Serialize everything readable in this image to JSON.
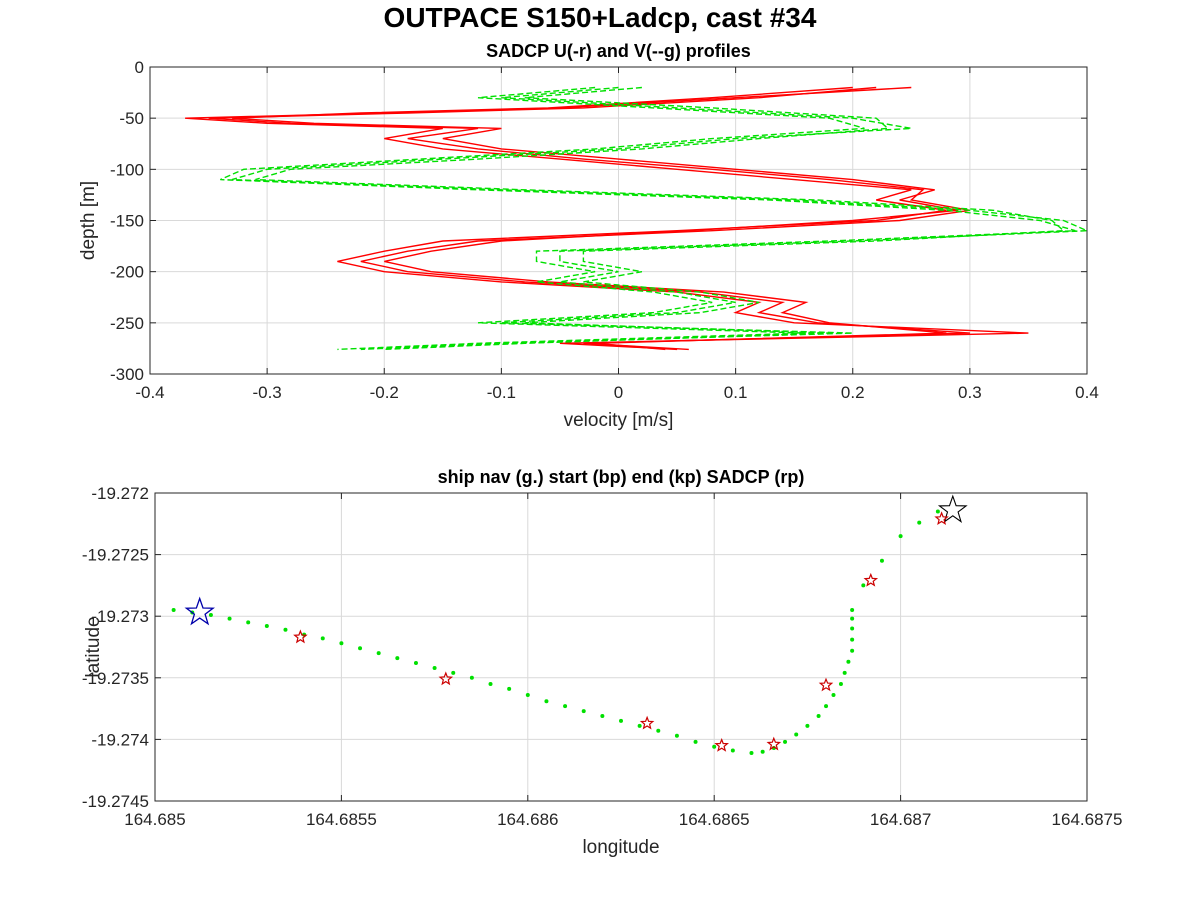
{
  "figure": {
    "title": "OUTPACE S150+Ladcp, cast #34"
  },
  "chart_data": [
    {
      "type": "line",
      "title": "SADCP U(-r) and V(--g) profiles",
      "xlabel": "velocity [m/s]",
      "ylabel": "depth [m]",
      "xlim": [
        -0.4,
        0.4
      ],
      "ylim": [
        -300,
        0
      ],
      "xticks": [
        -0.4,
        -0.3,
        -0.2,
        -0.1,
        0,
        0.1,
        0.2,
        0.3,
        0.4
      ],
      "xtick_labels": [
        "-0.4",
        "-0.3",
        "-0.2",
        "-0.1",
        "0",
        "0.1",
        "0.2",
        "0.3",
        "0.4"
      ],
      "yticks": [
        0,
        -50,
        -100,
        -150,
        -200,
        -250,
        -300
      ],
      "ytick_labels": [
        "0",
        "-50",
        "-100",
        "-150",
        "-200",
        "-250",
        "-300"
      ],
      "grid": true,
      "series": [
        {
          "color": "#ff0000",
          "style": "solid",
          "depth": [
            -20,
            -30,
            -40,
            -45,
            -50,
            -55,
            -60,
            -70,
            -80,
            -90,
            -100,
            -110,
            -120,
            -130,
            -140,
            -150,
            -160,
            -170,
            -180,
            -190,
            -200,
            -210,
            -220,
            -230,
            -240,
            -250,
            -260,
            -270,
            -276
          ],
          "profiles": [
            [
              0.25,
              0.1,
              -0.05,
              -0.2,
              -0.37,
              -0.3,
              -0.15,
              -0.2,
              -0.15,
              -0.05,
              0.05,
              0.15,
              0.25,
              0.22,
              0.28,
              0.22,
              0.05,
              -0.15,
              -0.2,
              -0.24,
              -0.2,
              -0.1,
              0.05,
              0.12,
              0.1,
              0.15,
              0.35,
              -0.05,
              0.05
            ],
            [
              0.22,
              0.12,
              -0.03,
              -0.18,
              -0.35,
              -0.28,
              -0.12,
              -0.18,
              -0.12,
              -0.03,
              0.08,
              0.18,
              0.26,
              0.25,
              0.3,
              0.24,
              0.08,
              -0.12,
              -0.18,
              -0.22,
              -0.18,
              -0.08,
              0.07,
              0.14,
              0.12,
              0.17,
              0.3,
              -0.03,
              0.06
            ],
            [
              0.2,
              0.08,
              -0.06,
              -0.22,
              -0.33,
              -0.26,
              -0.1,
              -0.15,
              -0.1,
              0.0,
              0.1,
              0.2,
              0.27,
              0.24,
              0.29,
              0.2,
              0.06,
              -0.1,
              -0.16,
              -0.2,
              -0.16,
              -0.06,
              0.09,
              0.16,
              0.14,
              0.18,
              0.28,
              -0.02,
              0.04
            ]
          ]
        },
        {
          "color": "#00e000",
          "style": "dashed",
          "depth": [
            -20,
            -30,
            -40,
            -50,
            -60,
            -70,
            -80,
            -90,
            -100,
            -110,
            -120,
            -130,
            -140,
            -150,
            -160,
            -170,
            -180,
            -190,
            -200,
            -210,
            -220,
            -230,
            -240,
            -250,
            -260,
            -270,
            -276
          ],
          "profiles": [
            [
              0.0,
              -0.1,
              0.05,
              0.2,
              0.25,
              0.1,
              0.0,
              -0.15,
              -0.3,
              -0.33,
              -0.1,
              0.15,
              0.3,
              0.38,
              0.4,
              0.2,
              -0.05,
              -0.05,
              0.0,
              -0.05,
              0.05,
              0.1,
              0.05,
              -0.1,
              0.2,
              -0.1,
              -0.22
            ],
            [
              0.02,
              -0.08,
              0.08,
              0.22,
              0.23,
              0.12,
              0.02,
              -0.12,
              -0.28,
              -0.31,
              -0.08,
              0.17,
              0.32,
              0.37,
              0.38,
              0.22,
              -0.03,
              -0.03,
              0.02,
              -0.03,
              0.07,
              0.12,
              0.07,
              -0.08,
              0.18,
              -0.08,
              -0.2
            ],
            [
              -0.02,
              -0.12,
              0.03,
              0.18,
              0.21,
              0.08,
              -0.02,
              -0.17,
              -0.32,
              -0.34,
              -0.12,
              0.13,
              0.28,
              0.36,
              0.39,
              0.18,
              -0.07,
              -0.07,
              -0.02,
              -0.07,
              0.03,
              0.08,
              0.03,
              -0.12,
              0.16,
              -0.12,
              -0.24
            ]
          ]
        }
      ]
    },
    {
      "type": "scatter",
      "title": "ship nav (g.) start (bp) end (kp) SADCP (rp)",
      "xlabel": "longitude",
      "ylabel": "latitude",
      "xlim": [
        164.685,
        164.6875
      ],
      "ylim": [
        -19.2745,
        -19.272
      ],
      "xticks": [
        164.685,
        164.6855,
        164.686,
        164.6865,
        164.687,
        164.6875
      ],
      "xtick_labels": [
        "164.685",
        "164.6855",
        "164.686",
        "164.6865",
        "164.687",
        "164.6875"
      ],
      "yticks": [
        -19.272,
        -19.2725,
        -19.273,
        -19.2735,
        -19.274,
        -19.2745
      ],
      "ytick_labels": [
        "-19.272",
        "-19.2725",
        "-19.273",
        "-19.2735",
        "-19.274",
        "-19.2745"
      ],
      "grid": true,
      "series": [
        {
          "marker": "dot",
          "color": "#00e000",
          "points": [
            [
              164.68505,
              -19.27295
            ],
            [
              164.6851,
              -19.27297
            ],
            [
              164.68515,
              -19.27299
            ],
            [
              164.6852,
              -19.27302
            ],
            [
              164.68525,
              -19.27305
            ],
            [
              164.6853,
              -19.27308
            ],
            [
              164.68535,
              -19.27311
            ],
            [
              164.6854,
              -19.27315
            ],
            [
              164.68545,
              -19.27318
            ],
            [
              164.6855,
              -19.27322
            ],
            [
              164.68555,
              -19.27326
            ],
            [
              164.6856,
              -19.2733
            ],
            [
              164.68565,
              -19.27334
            ],
            [
              164.6857,
              -19.27338
            ],
            [
              164.68575,
              -19.27342
            ],
            [
              164.6858,
              -19.27346
            ],
            [
              164.68585,
              -19.2735
            ],
            [
              164.6859,
              -19.27355
            ],
            [
              164.68595,
              -19.27359
            ],
            [
              164.686,
              -19.27364
            ],
            [
              164.68605,
              -19.27369
            ],
            [
              164.6861,
              -19.27373
            ],
            [
              164.68615,
              -19.27377
            ],
            [
              164.6862,
              -19.27381
            ],
            [
              164.68625,
              -19.27385
            ],
            [
              164.6863,
              -19.27389
            ],
            [
              164.68635,
              -19.27393
            ],
            [
              164.6864,
              -19.27397
            ],
            [
              164.68645,
              -19.27402
            ],
            [
              164.6865,
              -19.27406
            ],
            [
              164.68655,
              -19.27409
            ],
            [
              164.6866,
              -19.27411
            ],
            [
              164.68663,
              -19.2741
            ],
            [
              164.68666,
              -19.27407
            ],
            [
              164.68669,
              -19.27402
            ],
            [
              164.68672,
              -19.27396
            ],
            [
              164.68675,
              -19.27389
            ],
            [
              164.68678,
              -19.27381
            ],
            [
              164.6868,
              -19.27373
            ],
            [
              164.68682,
              -19.27364
            ],
            [
              164.68684,
              -19.27355
            ],
            [
              164.68685,
              -19.27346
            ],
            [
              164.68686,
              -19.27337
            ],
            [
              164.68687,
              -19.27328
            ],
            [
              164.68687,
              -19.27319
            ],
            [
              164.68687,
              -19.2731
            ],
            [
              164.68687,
              -19.27302
            ],
            [
              164.68687,
              -19.27295
            ],
            [
              164.6869,
              -19.27275
            ],
            [
              164.68695,
              -19.27255
            ],
            [
              164.687,
              -19.27235
            ],
            [
              164.68705,
              -19.27224
            ],
            [
              164.6871,
              -19.27215
            ]
          ]
        },
        {
          "marker": "start-star",
          "color": "#0000aa",
          "points": [
            [
              164.68512,
              -19.27297
            ]
          ]
        },
        {
          "marker": "end-star",
          "color": "#000000",
          "points": [
            [
              164.68714,
              -19.27214
            ]
          ]
        },
        {
          "marker": "sadcp-star",
          "color": "#cc0000",
          "points": [
            [
              164.68539,
              -19.27317
            ],
            [
              164.68578,
              -19.27351
            ],
            [
              164.68632,
              -19.27387
            ],
            [
              164.68652,
              -19.27405
            ],
            [
              164.68666,
              -19.27404
            ],
            [
              164.6868,
              -19.27356
            ],
            [
              164.68692,
              -19.27271
            ],
            [
              164.68711,
              -19.27221
            ]
          ]
        }
      ]
    }
  ]
}
